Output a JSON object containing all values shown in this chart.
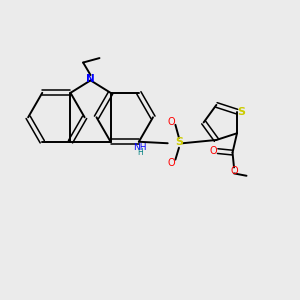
{
  "background_color": "#ebebeb",
  "bond_color": "#000000",
  "N_color": "#0000ff",
  "S_color": "#cccc00",
  "O_color": "#ff0000",
  "figsize": [
    3.0,
    3.0
  ],
  "dpi": 100,
  "xlim": [
    0,
    10
  ],
  "ylim": [
    0,
    10
  ]
}
